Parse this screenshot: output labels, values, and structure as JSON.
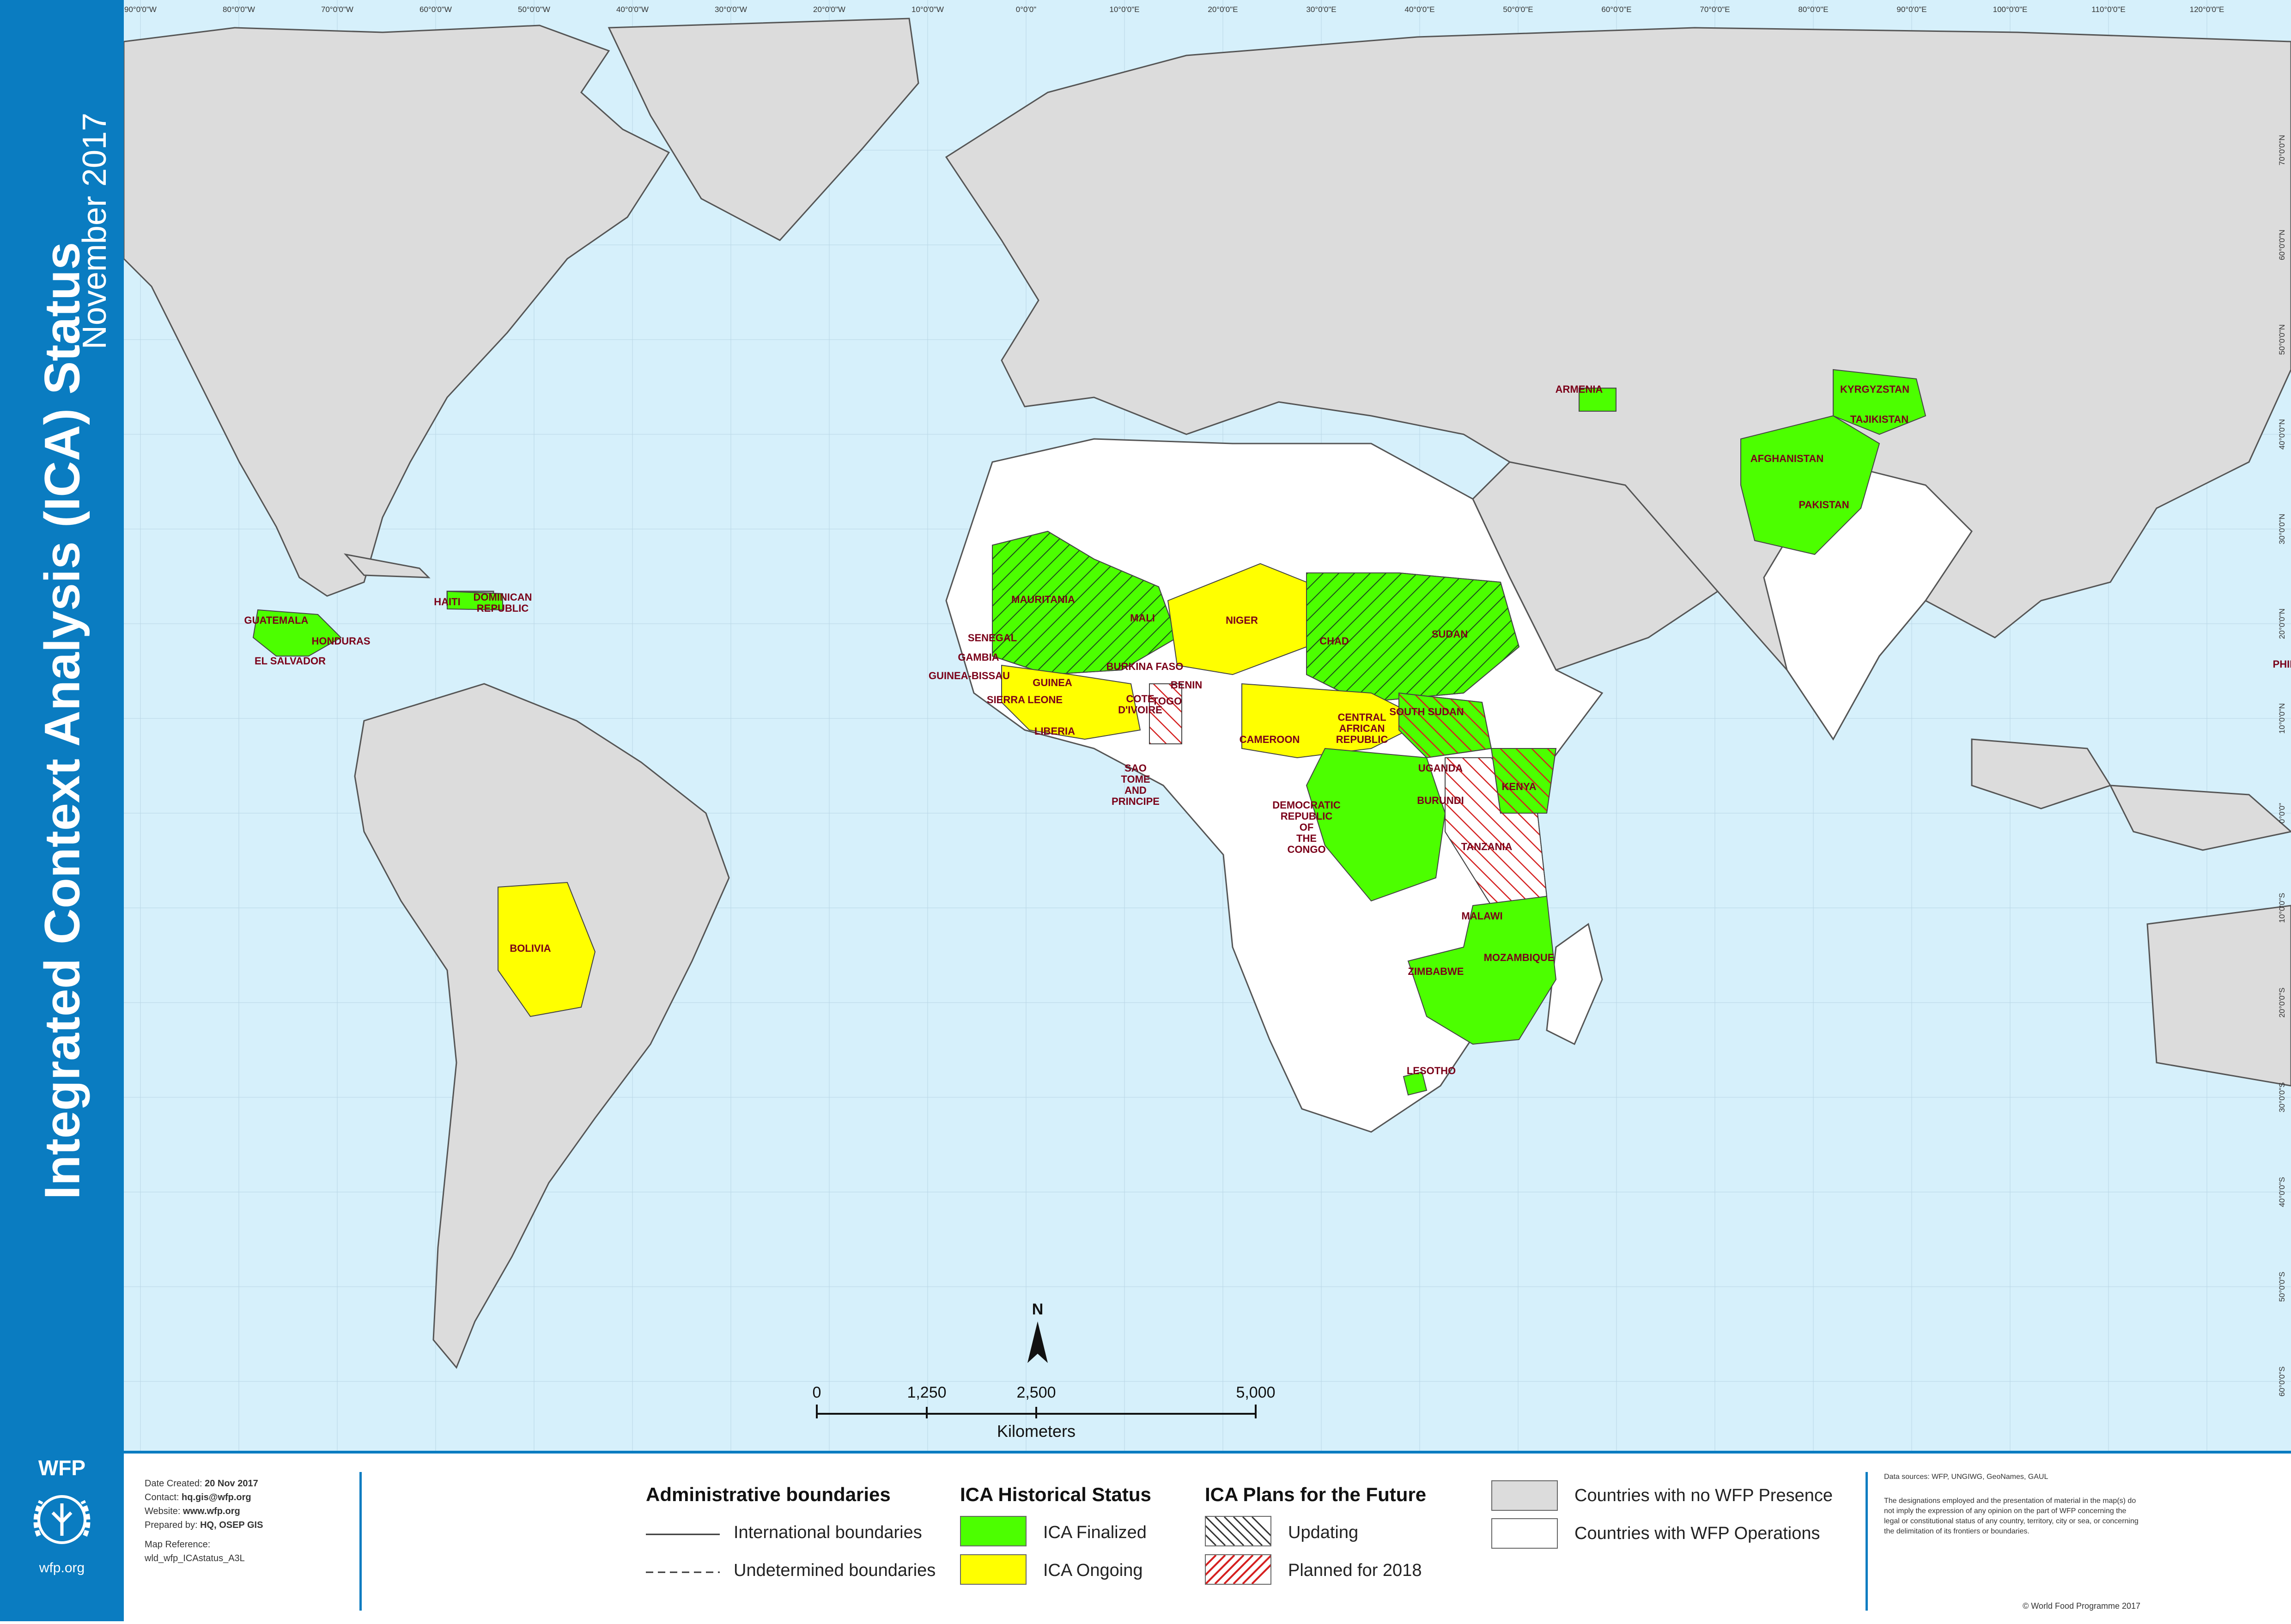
{
  "title": "Integrated Context Analysis (ICA) Status",
  "subtitle": "November 2017",
  "logo": {
    "brand": "WFP",
    "url": "wfp.org"
  },
  "credits": {
    "date_label": "Date Created:",
    "date": "20 Nov 2017",
    "contact_label": "Contact:",
    "contact": "hq.gis@wfp.org",
    "website_label": "Website:",
    "website": "www.wfp.org",
    "prepared_label": "Prepared by:",
    "prepared": "HQ, OSEP GIS",
    "ref_label": "Map Reference:",
    "ref": "wld_wfp_ICAstatus_A3L"
  },
  "legend": {
    "boundaries_title": "Administrative boundaries",
    "international": "International boundaries",
    "undetermined": "Undetermined boundaries",
    "historical_title": "ICA Historical Status",
    "finalized": "ICA Finalized",
    "ongoing": "ICA Ongoing",
    "plans_title": "ICA Plans for the Future",
    "updating": "Updating",
    "planned": "Planned for 2018",
    "no_presence": "Countries with no WFP Presence",
    "operations": "Countries with WFP Operations"
  },
  "colors": {
    "ocean": "#d6f0fb",
    "land": "#dcdcdc",
    "operations": "#ffffff",
    "finalized": "#4cff00",
    "ongoing": "#ffff00",
    "planned_hatch": "#e03030",
    "updating_hatch": "#333333",
    "sidebar": "#0a7cc1",
    "label": "#7a0019"
  },
  "scale_bar": {
    "labels": [
      "0",
      "1,250",
      "2,500",
      "5,000"
    ],
    "unit": "Kilometers"
  },
  "north_arrow": "N",
  "longitude_ticks": [
    "90°0'0\"W",
    "80°0'0\"W",
    "70°0'0\"W",
    "60°0'0\"W",
    "50°0'0\"W",
    "40°0'0\"W",
    "30°0'0\"W",
    "20°0'0\"W",
    "10°0'0\"W",
    "0°0'0\"",
    "10°0'0\"E",
    "20°0'0\"E",
    "30°0'0\"E",
    "40°0'0\"E",
    "50°0'0\"E",
    "60°0'0\"E",
    "70°0'0\"E",
    "80°0'0\"E",
    "90°0'0\"E",
    "100°0'0\"E",
    "110°0'0\"E",
    "120°0'0\"E"
  ],
  "latitude_ticks": [
    "70°0'0\"N",
    "60°0'0\"N",
    "50°0'0\"N",
    "40°0'0\"N",
    "30°0'0\"N",
    "20°0'0\"N",
    "10°0'0\"N",
    "0°0'0\"",
    "10°0'0\"S",
    "20°0'0\"S",
    "30°0'0\"S",
    "40°0'0\"S",
    "50°0'0\"S",
    "60°0'0\"S"
  ],
  "countries": [
    {
      "name": "GUATEMALA",
      "status": "finalized"
    },
    {
      "name": "HONDURAS",
      "status": "finalized"
    },
    {
      "name": "EL SALVADOR",
      "status": "finalized"
    },
    {
      "name": "HAITI",
      "status": "finalized"
    },
    {
      "name": "DOMINICAN REPUBLIC",
      "status": "finalized"
    },
    {
      "name": "BOLIVIA",
      "status": "ongoing"
    },
    {
      "name": "MAURITANIA",
      "status": "finalized-updating"
    },
    {
      "name": "MALI",
      "status": "finalized-updating"
    },
    {
      "name": "SENEGAL",
      "status": "finalized-updating"
    },
    {
      "name": "GAMBIA",
      "status": "finalized"
    },
    {
      "name": "GUINEA-BISSAU",
      "status": "planned"
    },
    {
      "name": "GUINEA",
      "status": "ongoing"
    },
    {
      "name": "SIERRA LEONE",
      "status": "ongoing"
    },
    {
      "name": "LIBERIA",
      "status": "ongoing"
    },
    {
      "name": "COTE D'IVOIRE",
      "status": "ongoing"
    },
    {
      "name": "BURKINA FASO",
      "status": "finalized-updating"
    },
    {
      "name": "NIGER",
      "status": "ongoing"
    },
    {
      "name": "BENIN",
      "status": "planned"
    },
    {
      "name": "TOGO",
      "status": "planned"
    },
    {
      "name": "CHAD",
      "status": "finalized-updating"
    },
    {
      "name": "SUDAN",
      "status": "finalized-updating"
    },
    {
      "name": "CAMEROON",
      "status": "ongoing"
    },
    {
      "name": "CENTRAL AFRICAN REPUBLIC",
      "status": "ongoing"
    },
    {
      "name": "SOUTH SUDAN",
      "status": "finalized-planned"
    },
    {
      "name": "SAO TOME AND PRINCIPE",
      "status": "operations"
    },
    {
      "name": "UGANDA",
      "status": "planned"
    },
    {
      "name": "KENYA",
      "status": "finalized-planned"
    },
    {
      "name": "BURUNDI",
      "status": "planned"
    },
    {
      "name": "DEMOCRATIC REPUBLIC OF THE CONGO",
      "status": "finalized"
    },
    {
      "name": "TANZANIA",
      "status": "planned"
    },
    {
      "name": "MALAWI",
      "status": "finalized"
    },
    {
      "name": "MOZAMBIQUE",
      "status": "finalized"
    },
    {
      "name": "ZIMBABWE",
      "status": "finalized"
    },
    {
      "name": "LESOTHO",
      "status": "finalized"
    },
    {
      "name": "ARMENIA",
      "status": "finalized"
    },
    {
      "name": "KYRGYZSTAN",
      "status": "finalized"
    },
    {
      "name": "TAJIKISTAN",
      "status": "finalized"
    },
    {
      "name": "AFGHANISTAN",
      "status": "finalized"
    },
    {
      "name": "PAKISTAN",
      "status": "finalized"
    },
    {
      "name": "PHILIPPINES",
      "status": "finalized"
    }
  ],
  "disclaimer": {
    "sources": "Data sources: WFP, UNGIWG, GeoNames, GAUL",
    "text": "The designations employed and the presentation of material in the map(s) do not imply the expression of any opinion on the part of WFP concerning the legal or constitutional status of any country, territory, city or sea, or concerning the delimitation of its frontiers or boundaries.",
    "copyright": "© World Food Programme 2017"
  }
}
